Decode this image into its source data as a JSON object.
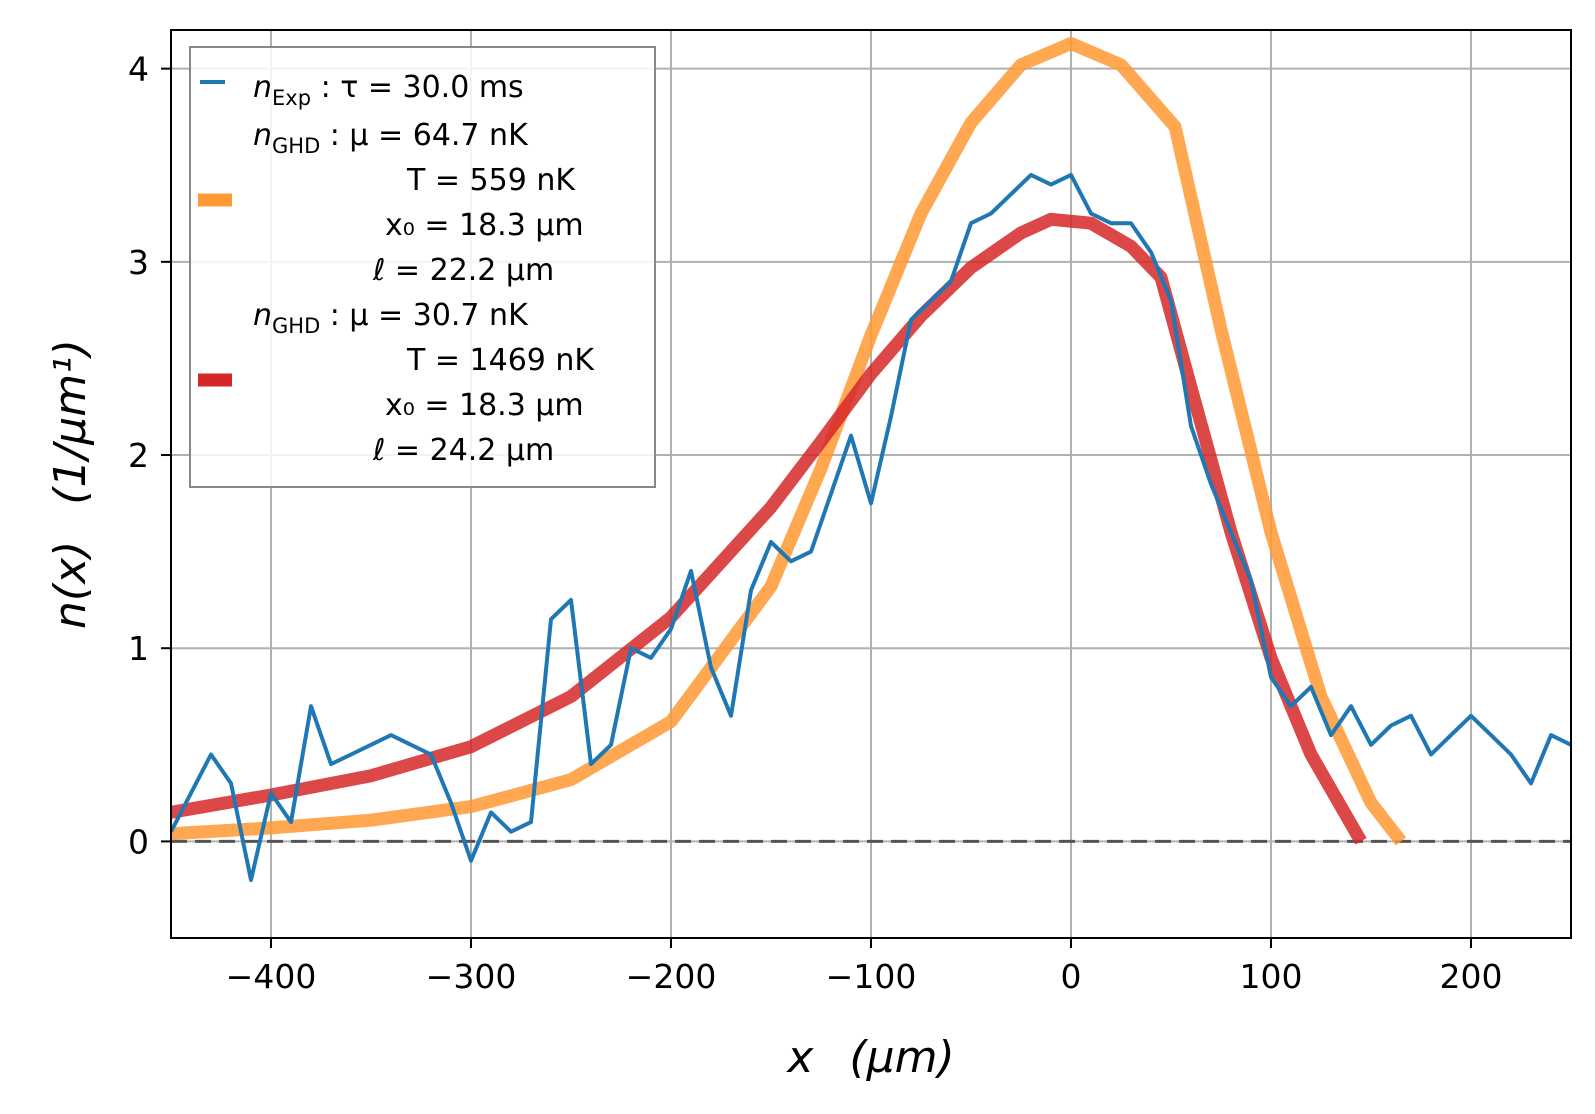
{
  "chart_data": {
    "type": "line",
    "xlabel_var": "x",
    "xlabel_unit": "(μm)",
    "ylabel_var": "n(x)",
    "ylabel_unit": "(1/μm¹)",
    "xlim": [
      -450,
      250
    ],
    "ylim": [
      -0.5,
      4.2
    ],
    "x_ticks": [
      -400,
      -300,
      -200,
      -100,
      0,
      100,
      200
    ],
    "x_tick_labels": [
      "−400",
      "−300",
      "−200",
      "−100",
      "0",
      "100",
      "200"
    ],
    "y_ticks": [
      0,
      1,
      2,
      3,
      4
    ],
    "y_tick_labels": [
      "0",
      "1",
      "2",
      "3",
      "4"
    ],
    "grid": true,
    "legend_position": "top-left",
    "reference_line": {
      "y": 0,
      "style": "dashed",
      "color": "#555555"
    },
    "series": [
      {
        "key": "exp",
        "label_var": "n",
        "label_sub": "Exp",
        "label_rest": " : τ = 30.0 ms",
        "color": "#1f77b4",
        "x": [
          -450,
          -440,
          -430,
          -420,
          -410,
          -400,
          -390,
          -380,
          -370,
          -360,
          -350,
          -340,
          -330,
          -320,
          -310,
          -300,
          -290,
          -280,
          -270,
          -260,
          -250,
          -240,
          -230,
          -220,
          -210,
          -200,
          -190,
          -180,
          -170,
          -160,
          -150,
          -140,
          -130,
          -120,
          -110,
          -100,
          -90,
          -80,
          -70,
          -60,
          -50,
          -40,
          -30,
          -20,
          -10,
          0,
          10,
          20,
          30,
          40,
          50,
          60,
          70,
          80,
          90,
          100,
          110,
          120,
          130,
          140,
          150,
          160,
          170,
          180,
          190,
          200,
          210,
          220,
          230,
          240,
          250
        ],
        "y": [
          0.05,
          0.25,
          0.45,
          0.3,
          -0.2,
          0.25,
          0.1,
          0.7,
          0.4,
          0.45,
          0.5,
          0.55,
          0.5,
          0.45,
          0.2,
          -0.1,
          0.15,
          0.05,
          0.1,
          1.15,
          1.25,
          0.4,
          0.5,
          1.0,
          0.95,
          1.1,
          1.4,
          0.9,
          0.65,
          1.3,
          1.55,
          1.45,
          1.5,
          1.8,
          2.1,
          1.75,
          2.2,
          2.7,
          2.8,
          2.9,
          3.2,
          3.25,
          3.35,
          3.45,
          3.4,
          3.45,
          3.25,
          3.2,
          3.2,
          3.05,
          2.8,
          2.15,
          1.85,
          1.6,
          1.35,
          0.85,
          0.7,
          0.8,
          0.55,
          0.7,
          0.5,
          0.6,
          0.65,
          0.45,
          0.55,
          0.65,
          0.55,
          0.45,
          0.3,
          0.55,
          0.5
        ]
      },
      {
        "key": "ghd1",
        "label_var": "n",
        "label_sub": "GHD",
        "label_lines": [
          " : μ = 64.7 nK",
          "T = 559 nK",
          "x₀ = 18.3 μm",
          "ℓ = 22.2 μm"
        ],
        "color": "#ff9933",
        "x": [
          -450,
          -400,
          -350,
          -300,
          -250,
          -200,
          -150,
          -125,
          -100,
          -75,
          -50,
          -25,
          0,
          25,
          52,
          75,
          100,
          125,
          150,
          165
        ],
        "y": [
          0.04,
          0.07,
          0.11,
          0.18,
          0.32,
          0.62,
          1.32,
          1.93,
          2.62,
          3.25,
          3.72,
          4.02,
          4.13,
          4.02,
          3.7,
          2.65,
          1.6,
          0.75,
          0.2,
          0.0
        ]
      },
      {
        "key": "ghd2",
        "label_var": "n",
        "label_sub": "GHD",
        "label_lines": [
          " : μ = 30.7 nK",
          "T = 1469 nK",
          "x₀ = 18.3 μm",
          "ℓ = 24.2 μm"
        ],
        "color": "#d62728",
        "x": [
          -450,
          -400,
          -350,
          -300,
          -250,
          -200,
          -150,
          -125,
          -100,
          -75,
          -50,
          -25,
          -10,
          10,
          30,
          45,
          60,
          80,
          100,
          120,
          145
        ],
        "y": [
          0.15,
          0.24,
          0.34,
          0.49,
          0.75,
          1.16,
          1.73,
          2.07,
          2.42,
          2.72,
          2.97,
          3.15,
          3.22,
          3.2,
          3.08,
          2.92,
          2.35,
          1.6,
          0.95,
          0.45,
          0.0
        ]
      }
    ]
  }
}
